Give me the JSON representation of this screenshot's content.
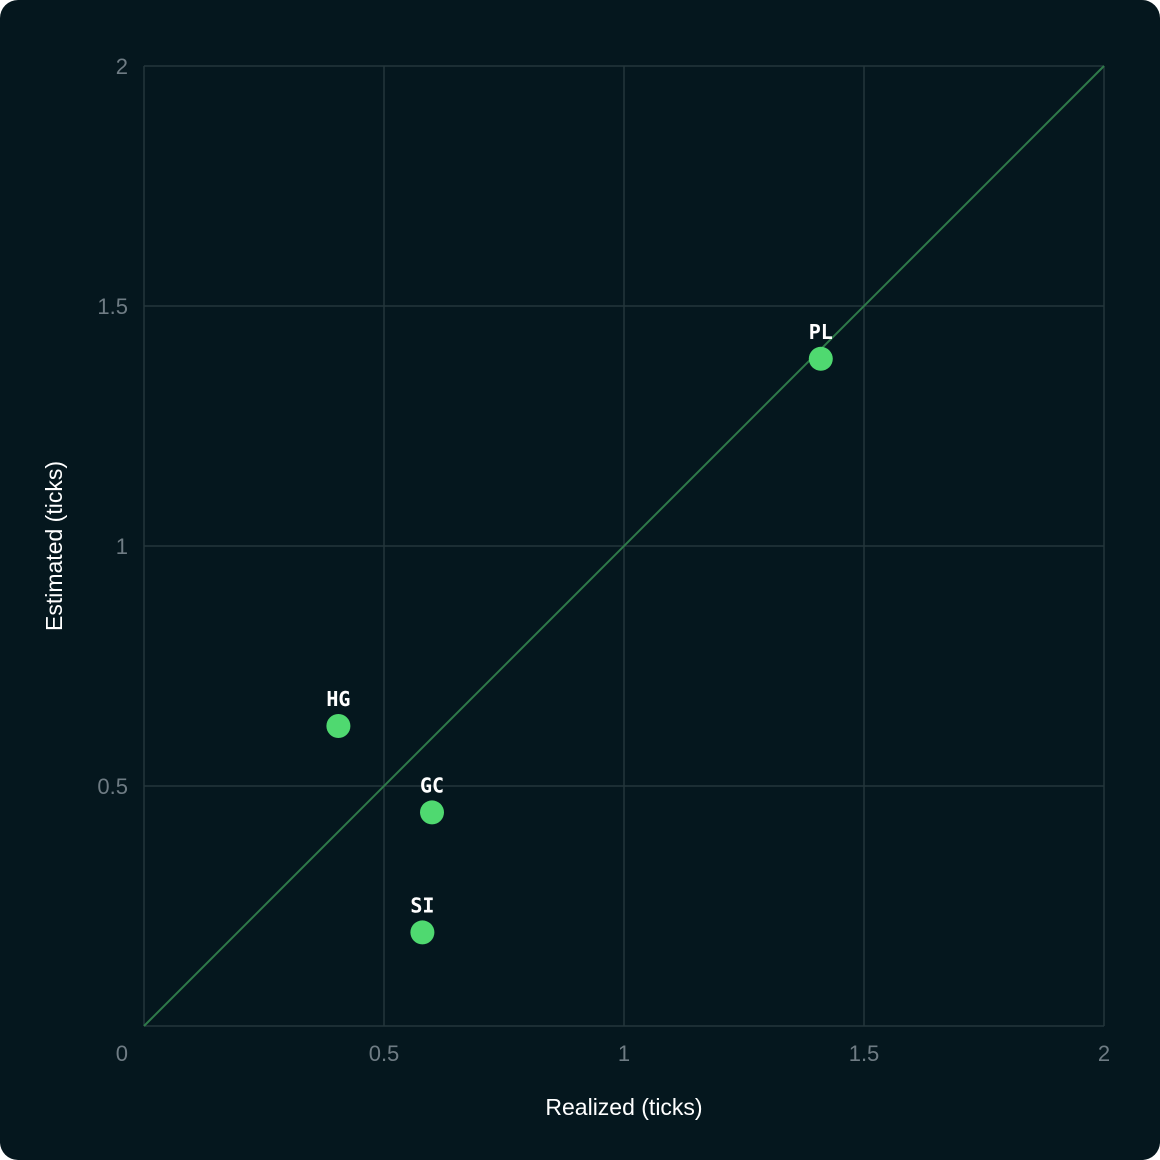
{
  "colors": {
    "background": "#05171e",
    "grid": "#24363b",
    "axis": "#2c3e43",
    "diagonal": "#2f7a4a",
    "point": "#4fd970",
    "text": "#ffffff",
    "tick_text": "#6f7c84"
  },
  "chart_data": {
    "type": "scatter",
    "xlabel": "Realized (ticks)",
    "ylabel": "Estimated (ticks)",
    "xlim": [
      0,
      2
    ],
    "ylim": [
      0,
      2
    ],
    "xticks": [
      "0",
      "0.5",
      "1",
      "1.5",
      "2"
    ],
    "yticks": [
      "0.5",
      "1",
      "1.5",
      "2"
    ],
    "grid": true,
    "reference_line": "y = x",
    "points": [
      {
        "label": "PL",
        "x": 1.41,
        "y": 1.39
      },
      {
        "label": "HG",
        "x": 0.405,
        "y": 0.625
      },
      {
        "label": "GC",
        "x": 0.6,
        "y": 0.445
      },
      {
        "label": "SI",
        "x": 0.58,
        "y": 0.195
      }
    ]
  }
}
